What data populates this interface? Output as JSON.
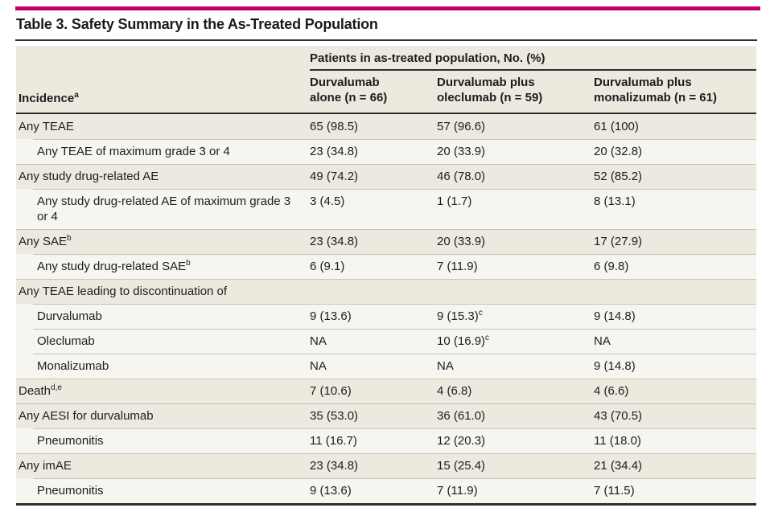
{
  "style": {
    "accent_bar_color": "#C70067",
    "group_row_color": "#ECE9DF",
    "sub_row_color": "#F6F5F0",
    "dark_rule_color": "#2e2e2e",
    "light_rule_color": "#c6c4bb",
    "text_color": "#1d1d1d"
  },
  "title": "Table 3. Safety Summary in the As-Treated Population",
  "header": {
    "incidence": {
      "text": "Incidence",
      "sup": "a"
    },
    "span_header": "Patients in as-treated population, No. (%)",
    "columns": [
      {
        "lines": [
          "Durvalumab",
          "alone (n = 66)"
        ]
      },
      {
        "lines": [
          "Durvalumab plus",
          "oleclumab (n = 59)"
        ]
      },
      {
        "lines": [
          "Durvalumab plus",
          "monalizumab (n = 61)"
        ]
      }
    ]
  },
  "rows": [
    {
      "label": "Any TEAE",
      "indent": false,
      "values": [
        "65 (98.5)",
        "57 (96.6)",
        "61 (100)"
      ]
    },
    {
      "label": "Any TEAE of maximum grade 3 or 4",
      "indent": true,
      "values": [
        "23 (34.8)",
        "20 (33.9)",
        "20 (32.8)"
      ]
    },
    {
      "label": "Any study drug-related AE",
      "indent": false,
      "values": [
        "49 (74.2)",
        "46 (78.0)",
        "52 (85.2)"
      ]
    },
    {
      "label": "Any study drug-related AE of maximum grade 3 or 4",
      "indent": true,
      "values": [
        "3 (4.5)",
        "1 (1.7)",
        "8 (13.1)"
      ]
    },
    {
      "label": "Any SAE",
      "label_sup": "b",
      "indent": false,
      "values": [
        "23 (34.8)",
        "20 (33.9)",
        "17 (27.9)"
      ]
    },
    {
      "label": "Any study drug-related SAE",
      "label_sup": "b",
      "indent": true,
      "values": [
        "6 (9.1)",
        "7 (11.9)",
        "6 (9.8)"
      ]
    },
    {
      "label": "Any TEAE leading to discontinuation of",
      "indent": false,
      "values": [
        "",
        "",
        ""
      ]
    },
    {
      "label": "Durvalumab",
      "indent": true,
      "values": [
        "9 (13.6)",
        {
          "t": "9 (15.3)",
          "sup": "c"
        },
        "9 (14.8)"
      ]
    },
    {
      "label": "Oleclumab",
      "indent": true,
      "values": [
        "NA",
        {
          "t": "10 (16.9)",
          "sup": "c"
        },
        "NA"
      ]
    },
    {
      "label": "Monalizumab",
      "indent": true,
      "values": [
        "NA",
        "NA",
        "9 (14.8)"
      ]
    },
    {
      "label": "Death",
      "label_sup": "d,e",
      "indent": false,
      "values": [
        "7 (10.6)",
        "4 (6.8)",
        "4 (6.6)"
      ]
    },
    {
      "label": "Any AESI for durvalumab",
      "indent": false,
      "values": [
        "35 (53.0)",
        "36 (61.0)",
        "43 (70.5)"
      ]
    },
    {
      "label": "Pneumonitis",
      "indent": true,
      "values": [
        "11 (16.7)",
        "12 (20.3)",
        "11 (18.0)"
      ]
    },
    {
      "label": "Any imAE",
      "indent": false,
      "values": [
        "23 (34.8)",
        "15 (25.4)",
        "21 (34.4)"
      ]
    },
    {
      "label": "Pneumonitis",
      "indent": true,
      "values": [
        "9 (13.6)",
        "7 (11.9)",
        "7 (11.5)"
      ]
    }
  ]
}
